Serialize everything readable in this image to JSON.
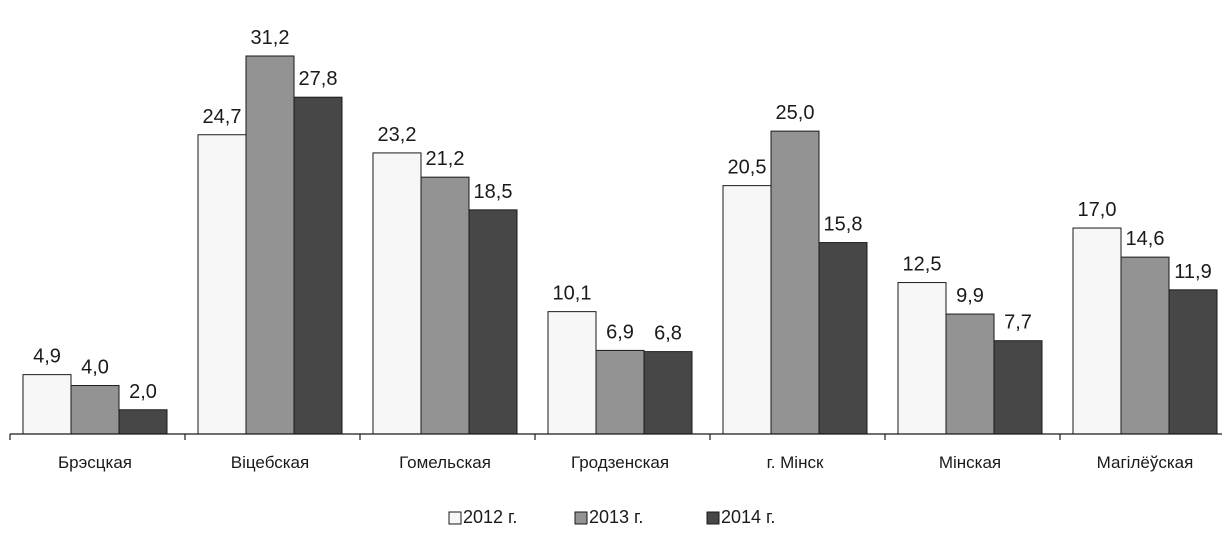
{
  "chart_data": {
    "type": "bar",
    "title": "",
    "xlabel": "",
    "ylabel": "",
    "ylim": [
      0,
      31.2
    ],
    "grid": false,
    "legend_position": "bottom",
    "categories": [
      "Брэсцкая",
      "Віцебская",
      "Гомельская",
      "Гродзенская",
      "г. Мінск",
      "Мінская",
      "Магілёўская"
    ],
    "series": [
      {
        "name": "2012 г.",
        "color": "#f7f7f7",
        "values": [
          4.9,
          24.7,
          23.2,
          10.1,
          20.5,
          12.5,
          17.0
        ],
        "labels": [
          "4,9",
          "24,7",
          "23,2",
          "10,1",
          "20,5",
          "12,5",
          "17,0"
        ]
      },
      {
        "name": "2013 г.",
        "color": "#939393",
        "values": [
          4.0,
          31.2,
          21.2,
          6.9,
          25.0,
          9.9,
          14.6
        ],
        "labels": [
          "4,0",
          "31,2",
          "21,2",
          "6,9",
          "25,0",
          "9,9",
          "14,6"
        ]
      },
      {
        "name": "2014 г.",
        "color": "#474747",
        "values": [
          2.0,
          27.8,
          18.5,
          6.8,
          15.8,
          7.7,
          11.9
        ],
        "labels": [
          "2,0",
          "27,8",
          "18,5",
          "6,8",
          "15,8",
          "7,7",
          "11,9"
        ]
      }
    ]
  }
}
